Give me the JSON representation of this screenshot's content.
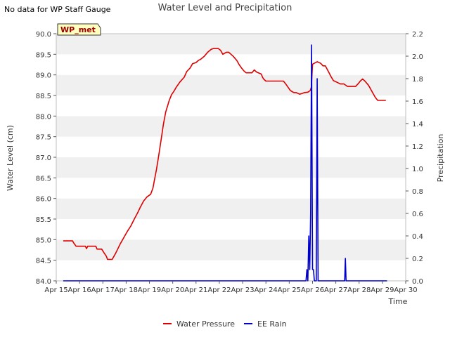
{
  "header": {
    "no_data_text": "No data for WP Staff Gauge"
  },
  "chart_data": {
    "type": "line",
    "title": "Water Level and Precipitation",
    "xlabel": "Time",
    "ylabel_left": "Water Level (cm)",
    "ylabel_right": "Precipitation",
    "badge": "WP_met",
    "x_ticks": [
      "Apr 15",
      "Apr 16",
      "Apr 17",
      "Apr 18",
      "Apr 19",
      "Apr 20",
      "Apr 21",
      "Apr 22",
      "Apr 23",
      "Apr 24",
      "Apr 25",
      "Apr 26",
      "Apr 27",
      "Apr 28",
      "Apr 29",
      "Apr 30"
    ],
    "x_range_days": [
      15,
      30
    ],
    "ylim_left": [
      84.0,
      90.0
    ],
    "yticks_left": [
      "84.0",
      "84.5",
      "85.0",
      "85.5",
      "86.0",
      "86.5",
      "87.0",
      "87.5",
      "88.0",
      "88.5",
      "89.0",
      "89.5",
      "90.0"
    ],
    "ylim_right": [
      0.0,
      2.2
    ],
    "yticks_right": [
      "0.0",
      "0.2",
      "0.4",
      "0.6",
      "0.8",
      "1.0",
      "1.2",
      "1.4",
      "1.6",
      "1.8",
      "2.0",
      "2.2"
    ],
    "grid_bands": "alternating horizontal gray bands",
    "legend_position": "bottom-center",
    "series": [
      {
        "name": "Water Pressure",
        "color": "#dd0000",
        "axis": "left",
        "x": [
          15.3,
          15.7,
          15.75,
          15.85,
          16.25,
          16.3,
          16.35,
          16.7,
          16.75,
          16.95,
          17.05,
          17.15,
          17.2,
          17.4,
          17.55,
          17.75,
          17.9,
          18.05,
          18.2,
          18.35,
          18.5,
          18.6,
          18.75,
          18.9,
          19.05,
          19.15,
          19.25,
          19.3,
          19.4,
          19.5,
          19.6,
          19.7,
          19.85,
          19.95,
          20.05,
          20.15,
          20.3,
          20.5,
          20.6,
          20.75,
          20.85,
          21.0,
          21.1,
          21.2,
          21.35,
          21.5,
          21.65,
          21.75,
          21.95,
          22.05,
          22.15,
          22.3,
          22.4,
          22.5,
          22.6,
          22.75,
          22.85,
          22.95,
          23.05,
          23.15,
          23.25,
          23.4,
          23.5,
          23.6,
          23.8,
          23.85,
          23.9,
          24.0,
          24.2,
          24.45,
          24.75,
          24.85,
          24.95,
          25.05,
          25.2,
          25.3,
          25.45,
          25.55,
          25.65,
          25.8,
          25.9,
          25.95,
          26.0,
          26.2,
          26.35,
          26.45,
          26.55,
          26.6,
          26.7,
          26.8,
          26.9,
          27.05,
          27.2,
          27.35,
          27.5,
          27.65,
          27.75,
          27.85,
          27.95,
          28.05,
          28.15,
          28.25,
          28.4,
          28.5,
          28.6,
          28.7,
          28.8,
          28.9,
          29.0,
          29.1,
          29.15
        ],
        "values": [
          84.97,
          84.97,
          84.92,
          84.84,
          84.84,
          84.78,
          84.84,
          84.84,
          84.77,
          84.77,
          84.68,
          84.6,
          84.52,
          84.52,
          84.67,
          84.9,
          85.05,
          85.2,
          85.33,
          85.5,
          85.66,
          85.78,
          85.94,
          86.04,
          86.1,
          86.25,
          86.55,
          86.7,
          87.05,
          87.42,
          87.8,
          88.1,
          88.38,
          88.52,
          88.6,
          88.7,
          88.82,
          88.95,
          89.08,
          89.17,
          89.27,
          89.3,
          89.35,
          89.38,
          89.45,
          89.55,
          89.62,
          89.64,
          89.64,
          89.6,
          89.5,
          89.55,
          89.55,
          89.5,
          89.45,
          89.35,
          89.25,
          89.17,
          89.1,
          89.05,
          89.05,
          89.05,
          89.12,
          89.07,
          89.02,
          88.95,
          88.9,
          88.85,
          88.85,
          88.85,
          88.85,
          88.78,
          88.7,
          88.62,
          88.57,
          88.57,
          88.53,
          88.55,
          88.57,
          88.58,
          88.62,
          88.7,
          89.26,
          89.32,
          89.28,
          89.22,
          89.22,
          89.17,
          89.06,
          88.95,
          88.86,
          88.82,
          88.78,
          88.78,
          88.72,
          88.72,
          88.72,
          88.72,
          88.78,
          88.85,
          88.9,
          88.85,
          88.75,
          88.65,
          88.55,
          88.45,
          88.38,
          88.38,
          88.38,
          88.38,
          88.38
        ]
      },
      {
        "name": "EE Rain",
        "color": "#0000cc",
        "axis": "right",
        "x": [
          15.3,
          25.72,
          25.76,
          25.8,
          25.84,
          25.88,
          25.92,
          25.96,
          26.0,
          26.04,
          26.08,
          26.12,
          26.16,
          26.2,
          26.24,
          26.28,
          26.32,
          26.36,
          27.35,
          27.38,
          27.41,
          27.44,
          27.47,
          29.2
        ],
        "values": [
          0,
          0,
          0.1,
          0,
          0.4,
          0.1,
          0.6,
          2.1,
          0.1,
          0.1,
          0,
          0,
          0,
          1.8,
          0,
          0,
          0,
          0,
          0,
          0,
          0.2,
          0,
          0,
          0
        ]
      }
    ]
  }
}
